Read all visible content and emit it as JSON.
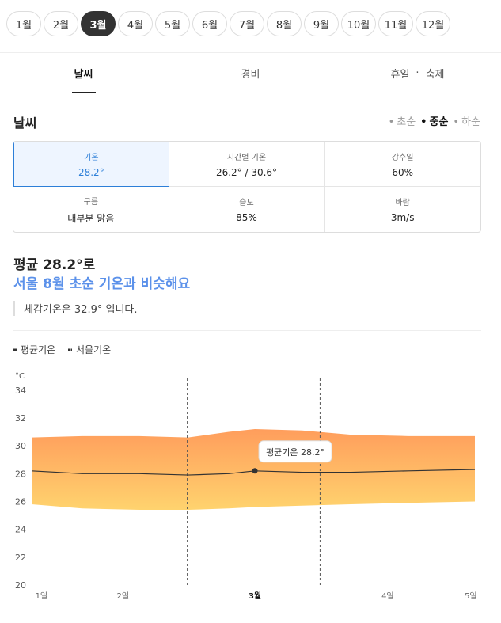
{
  "months": [
    "1월",
    "2월",
    "3월",
    "4월",
    "5월",
    "6월",
    "7월",
    "8월",
    "9월",
    "10월",
    "11월",
    "12월"
  ],
  "selected_month": 2,
  "tabs": [
    "날씨",
    "경비",
    "휴일",
    "축제"
  ],
  "section_title": "날씨",
  "periods": [
    "초순",
    "중순",
    "하순"
  ],
  "selected_period": 1,
  "weather_cards": [
    {
      "label": "기온",
      "value": "28.2°"
    },
    {
      "label": "시간별 기온",
      "value": "26.2° / 30.6°"
    },
    {
      "label": "강수일",
      "value": "60%"
    },
    {
      "label": "구름",
      "value": "대부분 맑음"
    },
    {
      "label": "습도",
      "value": "85%"
    },
    {
      "label": "바람",
      "value": "3m/s"
    }
  ],
  "selected_card": 0,
  "summary": {
    "line1": "평균 28.2°로",
    "line2": "서울 8월 초순 기온과 비슷해요",
    "note": "체감기온은 32.9° 입니다."
  },
  "chart_data": {
    "type": "line",
    "y_unit": "°C",
    "x": [
      0.88,
      1.5,
      2.2,
      2.8,
      3.3,
      3.62,
      4.2,
      4.8,
      5.5,
      6.32
    ],
    "xlim": [
      0.88,
      6.32
    ],
    "xticks": [
      {
        "value": 1,
        "label": "1일"
      },
      {
        "value": 2,
        "label": "2일"
      },
      {
        "value": 3.62,
        "label": "3월"
      },
      {
        "value": 5.25,
        "label": "4일"
      },
      {
        "value": 6.27,
        "label": "5일"
      }
    ],
    "ylim": [
      20,
      34.5
    ],
    "yticks": [
      20,
      22,
      24,
      26,
      28,
      30,
      32,
      34
    ],
    "period_lines": [
      2.79,
      4.42
    ],
    "series": [
      {
        "name": "평균기온",
        "color": "#333333",
        "values": [
          28.2,
          28.0,
          28.0,
          27.9,
          28.0,
          28.2,
          28.1,
          28.1,
          28.2,
          28.3
        ]
      },
      {
        "name": "서울기온",
        "color": "#ffa45e",
        "low": [
          25.8,
          25.5,
          25.4,
          25.4,
          25.5,
          25.6,
          25.7,
          25.8,
          25.9,
          26.0
        ],
        "high": [
          30.6,
          30.7,
          30.7,
          30.6,
          31.0,
          31.2,
          31.1,
          30.8,
          30.7,
          30.7
        ]
      }
    ],
    "highlight_index": 5,
    "annotation": "평균기온 28.2°"
  }
}
